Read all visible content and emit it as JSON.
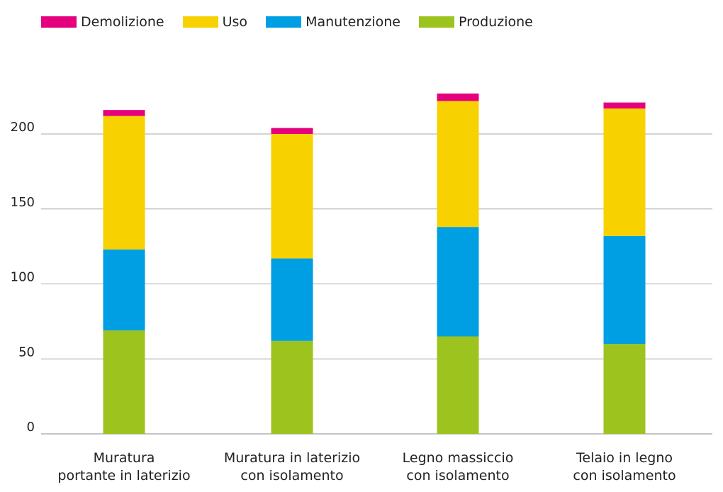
{
  "chart_data": {
    "type": "bar",
    "stacked": true,
    "categories": [
      [
        "Muratura",
        "portante in laterizio"
      ],
      [
        "Muratura in laterizio",
        "con isolamento"
      ],
      [
        "Legno massiccio",
        "con isolamento"
      ],
      [
        "Telaio in legno",
        "con isolamento"
      ]
    ],
    "series": [
      {
        "name": "Produzione",
        "color": "#9dc31e",
        "values": [
          69,
          62,
          65,
          60
        ]
      },
      {
        "name": "Manutenzione",
        "color": "#009fe3",
        "values": [
          54,
          55,
          73,
          72
        ]
      },
      {
        "name": "Uso",
        "color": "#f8d100",
        "values": [
          89,
          83,
          84,
          85
        ]
      },
      {
        "name": "Demolizione",
        "color": "#e5007d",
        "values": [
          4,
          4,
          5,
          4
        ]
      }
    ],
    "legend_order": [
      "Demolizione",
      "Uso",
      "Manutenzione",
      "Produzione"
    ],
    "yticks": [
      0,
      50,
      100,
      150,
      200
    ],
    "ylim": [
      0,
      230
    ],
    "grid": true,
    "legend_position": "top-left",
    "title": "",
    "xlabel": "",
    "ylabel": ""
  }
}
